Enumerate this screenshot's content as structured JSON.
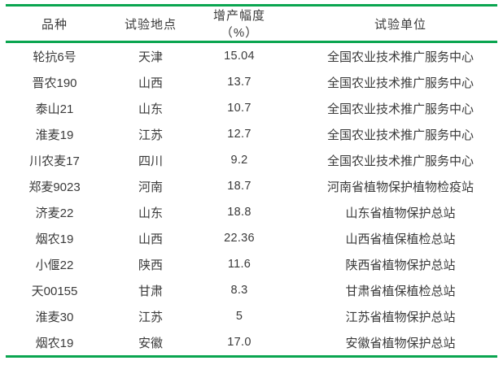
{
  "colors": {
    "rule_green": "#0aa550",
    "text": "#3a3a3a",
    "background": "#ffffff"
  },
  "table": {
    "headers": [
      "品种",
      "试验地点",
      "增产幅度（%）",
      "试验单位"
    ],
    "rows": [
      [
        "轮抗6号",
        "天津",
        "15.04",
        "全国农业技术推广服务中心"
      ],
      [
        "晋农190",
        "山西",
        "13.7",
        "全国农业技术推广服务中心"
      ],
      [
        "泰山21",
        "山东",
        "10.7",
        "全国农业技术推广服务中心"
      ],
      [
        "淮麦19",
        "江苏",
        "12.7",
        "全国农业技术推广服务中心"
      ],
      [
        "川农麦17",
        "四川",
        "9.2",
        "全国农业技术推广服务中心"
      ],
      [
        "郑麦9023",
        "河南",
        "18.7",
        "河南省植物保护植物检疫站"
      ],
      [
        "济麦22",
        "山东",
        "18.8",
        "山东省植物保护总站"
      ],
      [
        "烟农19",
        "山西",
        "22.36",
        "山西省植保植检总站"
      ],
      [
        "小偃22",
        "陕西",
        "11.6",
        "陕西省植物保护总站"
      ],
      [
        "天00155",
        "甘肃",
        "8.3",
        "甘肃省植保植检总站"
      ],
      [
        "淮麦30",
        "江苏",
        "5",
        "江苏省植物保护总站"
      ],
      [
        "烟农19",
        "安徽",
        "17.0",
        "安徽省植物保护总站"
      ]
    ]
  }
}
